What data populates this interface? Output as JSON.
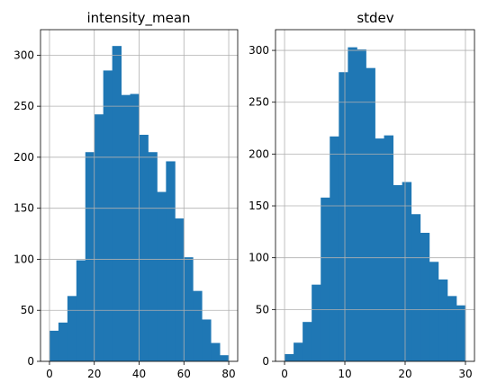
{
  "chart_data": [
    {
      "type": "bar",
      "title": "intensity_mean",
      "xlabel": "",
      "ylabel": "",
      "xlim": [
        -4,
        84
      ],
      "ylim": [
        0,
        325
      ],
      "xticks": [
        0,
        20,
        40,
        60,
        80
      ],
      "yticks": [
        0,
        50,
        100,
        150,
        200,
        250,
        300
      ],
      "grid": true,
      "bar_color": "#1f77b4",
      "bin_start": 0,
      "bin_width": 4,
      "values": [
        30,
        38,
        64,
        99,
        205,
        242,
        285,
        309,
        261,
        262,
        222,
        205,
        166,
        196,
        140,
        102,
        69,
        41,
        18,
        6
      ]
    },
    {
      "type": "bar",
      "title": "stdev",
      "xlabel": "",
      "ylabel": "",
      "xlim": [
        -1.5,
        31.5
      ],
      "ylim": [
        0,
        320
      ],
      "xticks": [
        0,
        10,
        20,
        30
      ],
      "yticks": [
        0,
        50,
        100,
        150,
        200,
        250,
        300
      ],
      "grid": true,
      "bar_color": "#1f77b4",
      "bin_start": 0,
      "bin_width": 1.5,
      "values": [
        7,
        18,
        38,
        74,
        158,
        217,
        279,
        303,
        301,
        283,
        215,
        218,
        170,
        173,
        142,
        124,
        96,
        79,
        63,
        54
      ]
    }
  ]
}
